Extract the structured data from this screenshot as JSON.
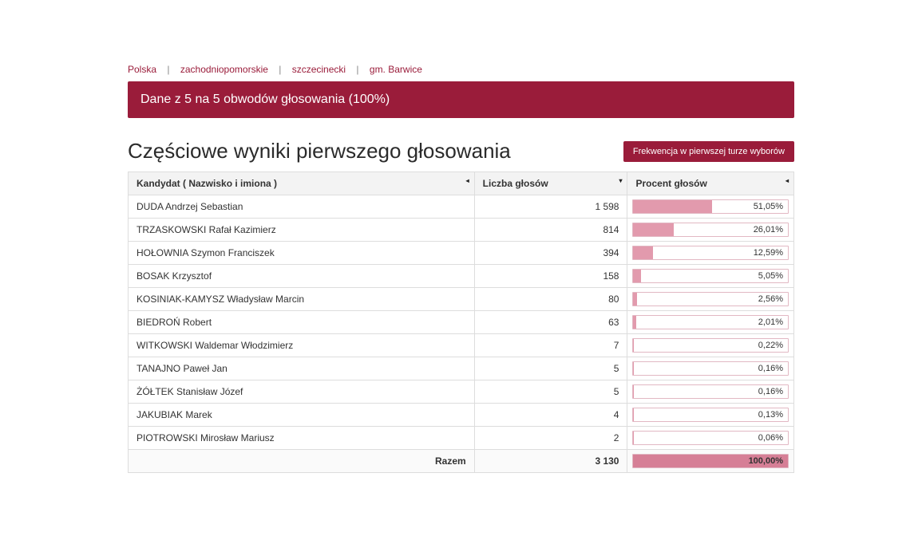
{
  "breadcrumb": {
    "items": [
      {
        "label": "Polska"
      },
      {
        "label": "zachodniopomorskie"
      },
      {
        "label": "szczecinecki"
      },
      {
        "label": "gm. Barwice"
      }
    ]
  },
  "banner": {
    "text": "Dane z 5 na 5 obwodów głosowania (100%)"
  },
  "heading": "Częściowe wyniki pierwszego głosowania",
  "frequency_button": "Frekwencja w pierwszej turze wyborów",
  "table": {
    "columns": {
      "candidate": "Kandydat ( Nazwisko i imiona )",
      "votes": "Liczba głosów",
      "percent": "Procent głosów"
    },
    "rows": [
      {
        "candidate": "DUDA Andrzej Sebastian",
        "votes": "1 598",
        "percent": "51,05%",
        "bar": 51.05
      },
      {
        "candidate": "TRZASKOWSKI Rafał Kazimierz",
        "votes": "814",
        "percent": "26,01%",
        "bar": 26.01
      },
      {
        "candidate": "HOŁOWNIA Szymon Franciszek",
        "votes": "394",
        "percent": "12,59%",
        "bar": 12.59
      },
      {
        "candidate": "BOSAK Krzysztof",
        "votes": "158",
        "percent": "5,05%",
        "bar": 5.05
      },
      {
        "candidate": "KOSINIAK-KAMYSZ Władysław Marcin",
        "votes": "80",
        "percent": "2,56%",
        "bar": 2.56
      },
      {
        "candidate": "BIEDROŃ Robert",
        "votes": "63",
        "percent": "2,01%",
        "bar": 2.01
      },
      {
        "candidate": "WITKOWSKI Waldemar Włodzimierz",
        "votes": "7",
        "percent": "0,22%",
        "bar": 0.22
      },
      {
        "candidate": "TANAJNO Paweł Jan",
        "votes": "5",
        "percent": "0,16%",
        "bar": 0.16
      },
      {
        "candidate": "ŻÓŁTEK Stanisław Józef",
        "votes": "5",
        "percent": "0,16%",
        "bar": 0.16
      },
      {
        "candidate": "JAKUBIAK Marek",
        "votes": "4",
        "percent": "0,13%",
        "bar": 0.13
      },
      {
        "candidate": "PIOTROWSKI Mirosław Mariusz",
        "votes": "2",
        "percent": "0,06%",
        "bar": 0.06
      }
    ],
    "total": {
      "label": "Razem",
      "votes": "3 130",
      "percent": "100,00%",
      "bar": 100
    }
  },
  "colors": {
    "brand": "#9a1c3a",
    "bar_fill": "#e29aad",
    "bar_border": "#e2b8c3",
    "bar_total": "#d67f96"
  }
}
